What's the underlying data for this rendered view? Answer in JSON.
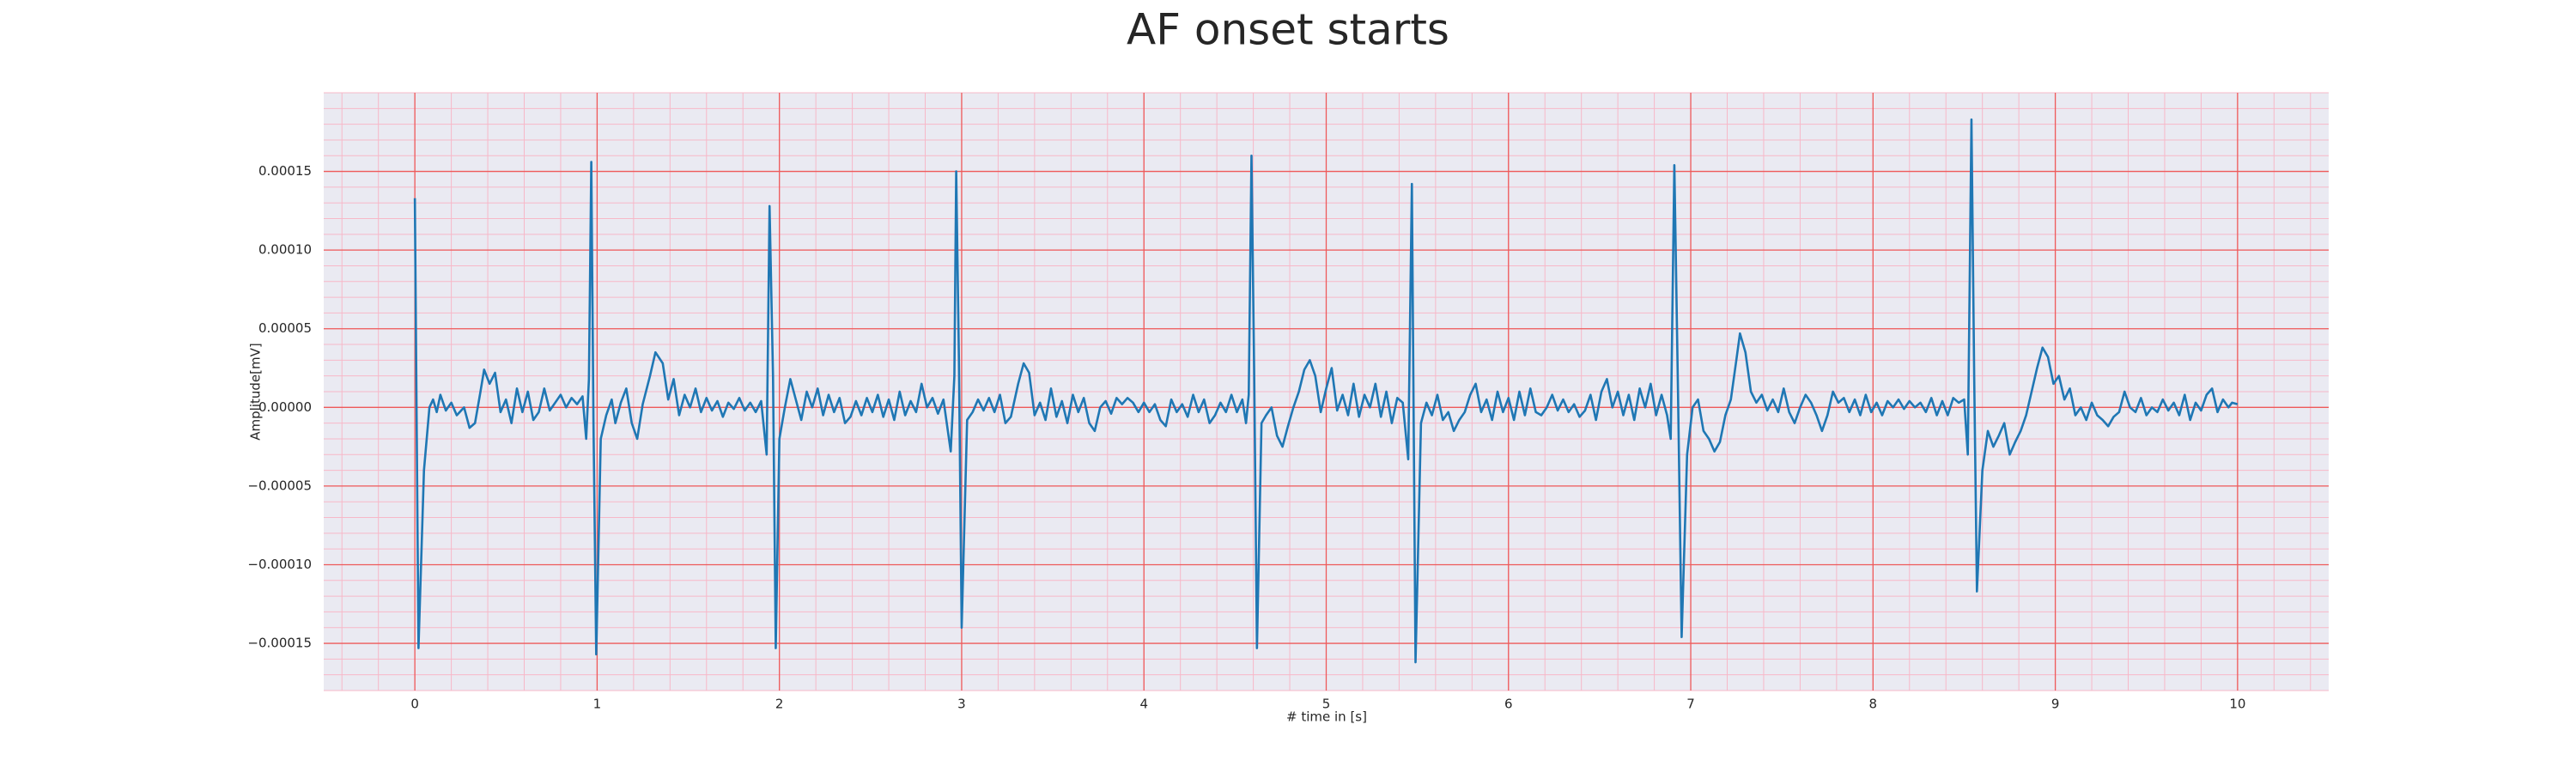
{
  "chart_data": {
    "type": "line",
    "title": "AF onset starts",
    "xlabel": "# time in [s]",
    "ylabel": "Amplitude[mV]",
    "color": "#1f77b4",
    "grid": true,
    "minor_grid": true,
    "xlim": [
      -0.5,
      10.5
    ],
    "ylim": [
      -0.00018,
      0.0002
    ],
    "xticks": [
      0,
      1,
      2,
      3,
      4,
      5,
      6,
      7,
      8,
      9,
      10
    ],
    "yticks": [
      {
        "value": -0.00015,
        "label": "−0.00015"
      },
      {
        "value": -0.0001,
        "label": "−0.00010"
      },
      {
        "value": -5e-05,
        "label": "−0.00005"
      },
      {
        "value": 0,
        "label": "0.00000"
      },
      {
        "value": 5e-05,
        "label": "0.00005"
      },
      {
        "value": 0.0001,
        "label": "0.00010"
      },
      {
        "value": 0.00015,
        "label": "0.00015"
      }
    ],
    "x": [
      0,
      0.02,
      0.05,
      0.08,
      0.1,
      0.12,
      0.14,
      0.17,
      0.2,
      0.23,
      0.27,
      0.3,
      0.33,
      0.36,
      0.38,
      0.41,
      0.44,
      0.47,
      0.5,
      0.53,
      0.56,
      0.59,
      0.62,
      0.65,
      0.68,
      0.71,
      0.74,
      0.77,
      0.8,
      0.83,
      0.86,
      0.89,
      0.92,
      0.94,
      0.955,
      0.968,
      0.98,
      0.995,
      1.02,
      1.05,
      1.08,
      1.1,
      1.13,
      1.16,
      1.19,
      1.22,
      1.25,
      1.29,
      1.32,
      1.36,
      1.39,
      1.42,
      1.45,
      1.48,
      1.51,
      1.54,
      1.57,
      1.6,
      1.63,
      1.66,
      1.69,
      1.72,
      1.75,
      1.78,
      1.81,
      1.84,
      1.87,
      1.9,
      1.93,
      1.946,
      1.965,
      1.98,
      2.0,
      2.03,
      2.06,
      2.09,
      2.12,
      2.15,
      2.18,
      2.21,
      2.24,
      2.27,
      2.3,
      2.33,
      2.36,
      2.39,
      2.42,
      2.45,
      2.48,
      2.51,
      2.54,
      2.57,
      2.6,
      2.63,
      2.66,
      2.69,
      2.72,
      2.75,
      2.78,
      2.81,
      2.84,
      2.87,
      2.9,
      2.94,
      2.96,
      2.97,
      2.985,
      3.0,
      3.03,
      3.06,
      3.09,
      3.12,
      3.15,
      3.18,
      3.21,
      3.24,
      3.27,
      3.31,
      3.34,
      3.37,
      3.4,
      3.43,
      3.46,
      3.49,
      3.52,
      3.55,
      3.58,
      3.61,
      3.64,
      3.67,
      3.7,
      3.73,
      3.76,
      3.79,
      3.82,
      3.85,
      3.88,
      3.91,
      3.94,
      3.97,
      4.0,
      4.03,
      4.06,
      4.09,
      4.12,
      4.15,
      4.18,
      4.21,
      4.24,
      4.27,
      4.3,
      4.33,
      4.36,
      4.39,
      4.42,
      4.45,
      4.48,
      4.51,
      4.54,
      4.56,
      4.575,
      4.59,
      4.605,
      4.62,
      4.645,
      4.67,
      4.7,
      4.73,
      4.76,
      4.79,
      4.82,
      4.85,
      4.88,
      4.91,
      4.94,
      4.97,
      5.0,
      5.03,
      5.06,
      5.09,
      5.12,
      5.15,
      5.18,
      5.21,
      5.24,
      5.27,
      5.3,
      5.33,
      5.36,
      5.39,
      5.42,
      5.45,
      5.47,
      5.49,
      5.52,
      5.55,
      5.58,
      5.61,
      5.64,
      5.67,
      5.7,
      5.73,
      5.76,
      5.79,
      5.82,
      5.85,
      5.88,
      5.91,
      5.94,
      5.97,
      6.0,
      6.03,
      6.06,
      6.09,
      6.12,
      6.15,
      6.18,
      6.21,
      6.24,
      6.27,
      6.3,
      6.33,
      6.36,
      6.39,
      6.42,
      6.45,
      6.48,
      6.51,
      6.54,
      6.57,
      6.6,
      6.63,
      6.66,
      6.69,
      6.72,
      6.75,
      6.78,
      6.81,
      6.84,
      6.87,
      6.89,
      6.91,
      6.93,
      6.95,
      6.98,
      7.01,
      7.04,
      7.07,
      7.1,
      7.13,
      7.16,
      7.19,
      7.22,
      7.25,
      7.27,
      7.3,
      7.33,
      7.36,
      7.39,
      7.42,
      7.45,
      7.48,
      7.51,
      7.54,
      7.57,
      7.6,
      7.63,
      7.66,
      7.69,
      7.72,
      7.75,
      7.78,
      7.81,
      7.84,
      7.87,
      7.9,
      7.93,
      7.96,
      7.99,
      8.02,
      8.05,
      8.08,
      8.11,
      8.14,
      8.17,
      8.2,
      8.23,
      8.26,
      8.29,
      8.32,
      8.35,
      8.38,
      8.41,
      8.44,
      8.47,
      8.5,
      8.52,
      8.54,
      8.555,
      8.57,
      8.6,
      8.63,
      8.66,
      8.69,
      8.72,
      8.75,
      8.78,
      8.81,
      8.84,
      8.87,
      8.9,
      8.93,
      8.96,
      8.99,
      9.02,
      9.05,
      9.08,
      9.11,
      9.14,
      9.17,
      9.2,
      9.23,
      9.26,
      9.29,
      9.32,
      9.35,
      9.38,
      9.41,
      9.44,
      9.47,
      9.5,
      9.53,
      9.56,
      9.59,
      9.62,
      9.65,
      9.68,
      9.71,
      9.74,
      9.77,
      9.8,
      9.83,
      9.86,
      9.89,
      9.92,
      9.95,
      9.97,
      10.0
    ],
    "values": [
      0.000133,
      -0.000153,
      -4e-05,
      0,
      5e-06,
      -3e-06,
      8e-06,
      -2e-06,
      3e-06,
      -5e-06,
      0,
      -1.3e-05,
      -1e-05,
      1e-05,
      2.4e-05,
      1.5e-05,
      2.2e-05,
      -3e-06,
      5e-06,
      -1e-05,
      1.2e-05,
      -3e-06,
      1e-05,
      -8e-06,
      -3e-06,
      1.2e-05,
      -2e-06,
      3e-06,
      8e-06,
      0,
      6e-06,
      2e-06,
      7e-06,
      -2e-05,
      1.8e-05,
      0.000156,
      -1e-05,
      -0.000157,
      -2e-05,
      -5e-06,
      5e-06,
      -1e-05,
      3e-06,
      1.2e-05,
      -1e-05,
      -2e-05,
      2e-06,
      2e-05,
      3.5e-05,
      2.8e-05,
      5e-06,
      1.8e-05,
      -5e-06,
      8e-06,
      0,
      1.2e-05,
      -3e-06,
      6e-06,
      -2e-06,
      4e-06,
      -6e-06,
      3e-06,
      -1e-06,
      6e-06,
      -2e-06,
      3e-06,
      -3e-06,
      4e-06,
      -3e-05,
      0.000128,
      2e-05,
      -0.000153,
      -2e-05,
      0,
      1.8e-05,
      5e-06,
      -8e-06,
      1e-05,
      0,
      1.2e-05,
      -5e-06,
      8e-06,
      -3e-06,
      6e-06,
      -1e-05,
      -6e-06,
      4e-06,
      -5e-06,
      6e-06,
      -3e-06,
      8e-06,
      -6e-06,
      5e-06,
      -8e-06,
      1e-05,
      -5e-06,
      4e-06,
      -3e-06,
      1.5e-05,
      0,
      6e-06,
      -4e-06,
      5e-06,
      -2.8e-05,
      2e-05,
      0.00015,
      3e-05,
      -0.00014,
      -8e-06,
      -3e-06,
      5e-06,
      -2e-06,
      6e-06,
      -3e-06,
      8e-06,
      -1e-05,
      -6e-06,
      1.5e-05,
      2.8e-05,
      2.2e-05,
      -5e-06,
      3e-06,
      -8e-06,
      1.2e-05,
      -6e-06,
      4e-06,
      -1e-05,
      8e-06,
      -3e-06,
      6e-06,
      -1e-05,
      -1.5e-05,
      0,
      4e-06,
      -4e-06,
      6e-06,
      2e-06,
      6e-06,
      3e-06,
      -3e-06,
      3e-06,
      -3e-06,
      2e-06,
      -8e-06,
      -1.2e-05,
      5e-06,
      -3e-06,
      2e-06,
      -6e-06,
      8e-06,
      -3e-06,
      5e-06,
      -1e-05,
      -5e-06,
      3e-06,
      -3e-06,
      8e-06,
      -3e-06,
      5e-06,
      -1e-05,
      8e-06,
      0.00016,
      2e-05,
      -0.000153,
      -1e-05,
      -5e-06,
      0,
      -1.8e-05,
      -2.5e-05,
      -1.2e-05,
      0,
      1e-05,
      2.4e-05,
      3e-05,
      2e-05,
      -3e-06,
      1.2e-05,
      2.5e-05,
      -2e-06,
      8e-06,
      -5e-06,
      1.5e-05,
      -6e-06,
      8e-06,
      0,
      1.5e-05,
      -6e-06,
      1e-05,
      -1e-05,
      6e-06,
      3e-06,
      -3.3e-05,
      0.000142,
      -0.000162,
      -1e-05,
      3e-06,
      -5e-06,
      8e-06,
      -8e-06,
      -3e-06,
      -1.5e-05,
      -8e-06,
      -3e-06,
      8e-06,
      1.5e-05,
      -3e-06,
      5e-06,
      -8e-06,
      1e-05,
      -3e-06,
      6e-06,
      -8e-06,
      1e-05,
      -5e-06,
      1.2e-05,
      -3e-06,
      -5e-06,
      0,
      8e-06,
      -2e-06,
      5e-06,
      -3e-06,
      2e-06,
      -6e-06,
      -2e-06,
      8e-06,
      -8e-06,
      1e-05,
      1.8e-05,
      0,
      1e-05,
      -5e-06,
      8e-06,
      -8e-06,
      1.2e-05,
      0,
      1.5e-05,
      -5e-06,
      8e-06,
      -5e-06,
      -2e-05,
      0.000154,
      1e-05,
      -0.000146,
      -3e-05,
      0,
      5e-06,
      -1.5e-05,
      -2e-05,
      -2.8e-05,
      -2.2e-05,
      -5e-06,
      5e-06,
      3e-05,
      4.7e-05,
      3.5e-05,
      1e-05,
      3e-06,
      8e-06,
      -2e-06,
      5e-06,
      -3e-06,
      1.2e-05,
      -3e-06,
      -1e-05,
      0,
      8e-06,
      3e-06,
      -5e-06,
      -1.5e-05,
      -5e-06,
      1e-05,
      3e-06,
      6e-06,
      -3e-06,
      5e-06,
      -5e-06,
      8e-06,
      -3e-06,
      3e-06,
      -5e-06,
      4e-06,
      0,
      5e-06,
      -1e-06,
      4e-06,
      0,
      3e-06,
      -3e-06,
      6e-06,
      -5e-06,
      4e-06,
      -5e-06,
      6e-06,
      3e-06,
      5e-06,
      -3e-05,
      0.000183,
      2e-05,
      -0.000117,
      -4e-05,
      -1.5e-05,
      -2.5e-05,
      -1.8e-05,
      -1e-05,
      -3e-05,
      -2.2e-05,
      -1.5e-05,
      -5e-06,
      1e-05,
      2.5e-05,
      3.8e-05,
      3.2e-05,
      1.5e-05,
      2e-05,
      5e-06,
      1.2e-05,
      -5e-06,
      0,
      -8e-06,
      3e-06,
      -5e-06,
      -8e-06,
      -1.2e-05,
      -6e-06,
      -3e-06,
      1e-05,
      0,
      -3e-06,
      6e-06,
      -5e-06,
      0,
      -3e-06,
      5e-06,
      -2e-06,
      3e-06,
      -5e-06,
      8e-06,
      -8e-06,
      3e-06,
      -2e-06,
      8e-06,
      1.2e-05,
      -3e-06,
      5e-06,
      0,
      3e-06,
      2e-06
    ]
  }
}
